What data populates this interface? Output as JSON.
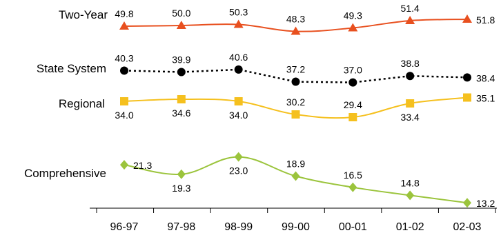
{
  "chart_data": {
    "type": "line",
    "title": "",
    "xlabel": "",
    "ylabel": "",
    "categories": [
      "96-97",
      "97-98",
      "98-99",
      "99-00",
      "00-01",
      "01-02",
      "02-03"
    ],
    "series": [
      {
        "name": "Two-Year",
        "values": [
          49.8,
          50.0,
          50.3,
          48.3,
          49.3,
          51.4,
          51.8
        ],
        "labels": [
          "49.8",
          "50.0",
          "50.3",
          "48.3",
          "49.3",
          "51.4",
          "51.8"
        ],
        "color": "#E8501F",
        "marker": "triangle",
        "line_style": "solid"
      },
      {
        "name": "State System",
        "values": [
          40.3,
          39.9,
          40.6,
          37.2,
          37.0,
          38.8,
          38.4
        ],
        "labels": [
          "40.3",
          "39.9",
          "40.6",
          "37.2",
          "37.0",
          "38.8",
          "38.4"
        ],
        "color": "#000000",
        "marker": "circle",
        "line_style": "dotted"
      },
      {
        "name": "Regional",
        "values": [
          34.0,
          34.6,
          34.0,
          30.2,
          29.4,
          33.4,
          35.1
        ],
        "labels": [
          "34.0",
          "34.6",
          "34.0",
          "30.2",
          "29.4",
          "33.4",
          "35.1"
        ],
        "color": "#F5C01E",
        "marker": "square",
        "line_style": "solid"
      },
      {
        "name": "Comprehensive",
        "values": [
          21.3,
          19.3,
          23.0,
          18.9,
          16.5,
          14.8,
          13.2
        ],
        "labels": [
          "21.3",
          "19.3",
          "23.0",
          "18.9",
          "16.5",
          "14.8",
          "13.2"
        ],
        "color": "#9BC43C",
        "marker": "diamond",
        "line_style": "solid"
      }
    ],
    "grid": false,
    "legend": "none (series names placed left of lines)"
  }
}
